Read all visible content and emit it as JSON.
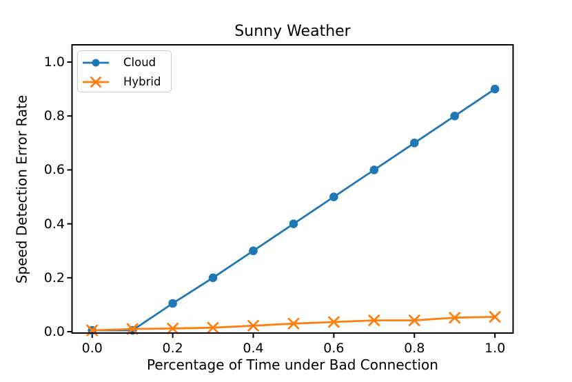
{
  "chart_data": {
    "type": "line",
    "title": "Sunny Weather",
    "xlabel": "Percentage of Time under Bad Connection",
    "ylabel": "Speed Detection Error Rate",
    "x": [
      0.0,
      0.1,
      0.2,
      0.3,
      0.4,
      0.5,
      0.6,
      0.7,
      0.8,
      0.9,
      1.0
    ],
    "series": [
      {
        "name": "Cloud",
        "marker": "circle",
        "color": "#1f77b4",
        "values": [
          0.005,
          0.005,
          0.105,
          0.2,
          0.3,
          0.4,
          0.5,
          0.6,
          0.7,
          0.8,
          0.9
        ]
      },
      {
        "name": "Hybrid",
        "marker": "x",
        "color": "#ff7f0e",
        "values": [
          0.005,
          0.01,
          0.012,
          0.015,
          0.022,
          0.03,
          0.036,
          0.042,
          0.042,
          0.052,
          0.055
        ]
      }
    ],
    "xticks": {
      "values": [
        0.0,
        0.2,
        0.4,
        0.6,
        0.8,
        1.0
      ],
      "labels": [
        "0.0",
        "0.2",
        "0.4",
        "0.6",
        "0.8",
        "1.0"
      ]
    },
    "yticks": {
      "values": [
        0.0,
        0.2,
        0.4,
        0.6,
        0.8,
        1.0
      ],
      "labels": [
        "0.0",
        "0.2",
        "0.4",
        "0.6",
        "0.8",
        "1.0"
      ]
    },
    "xlim": [
      -0.05,
      1.045
    ],
    "ylim": [
      -0.005,
      1.064
    ],
    "grid": false,
    "legend": {
      "position": "upper-left",
      "entries": [
        "Cloud",
        "Hybrid"
      ]
    },
    "axis_color": "#000000",
    "background": "#ffffff"
  }
}
